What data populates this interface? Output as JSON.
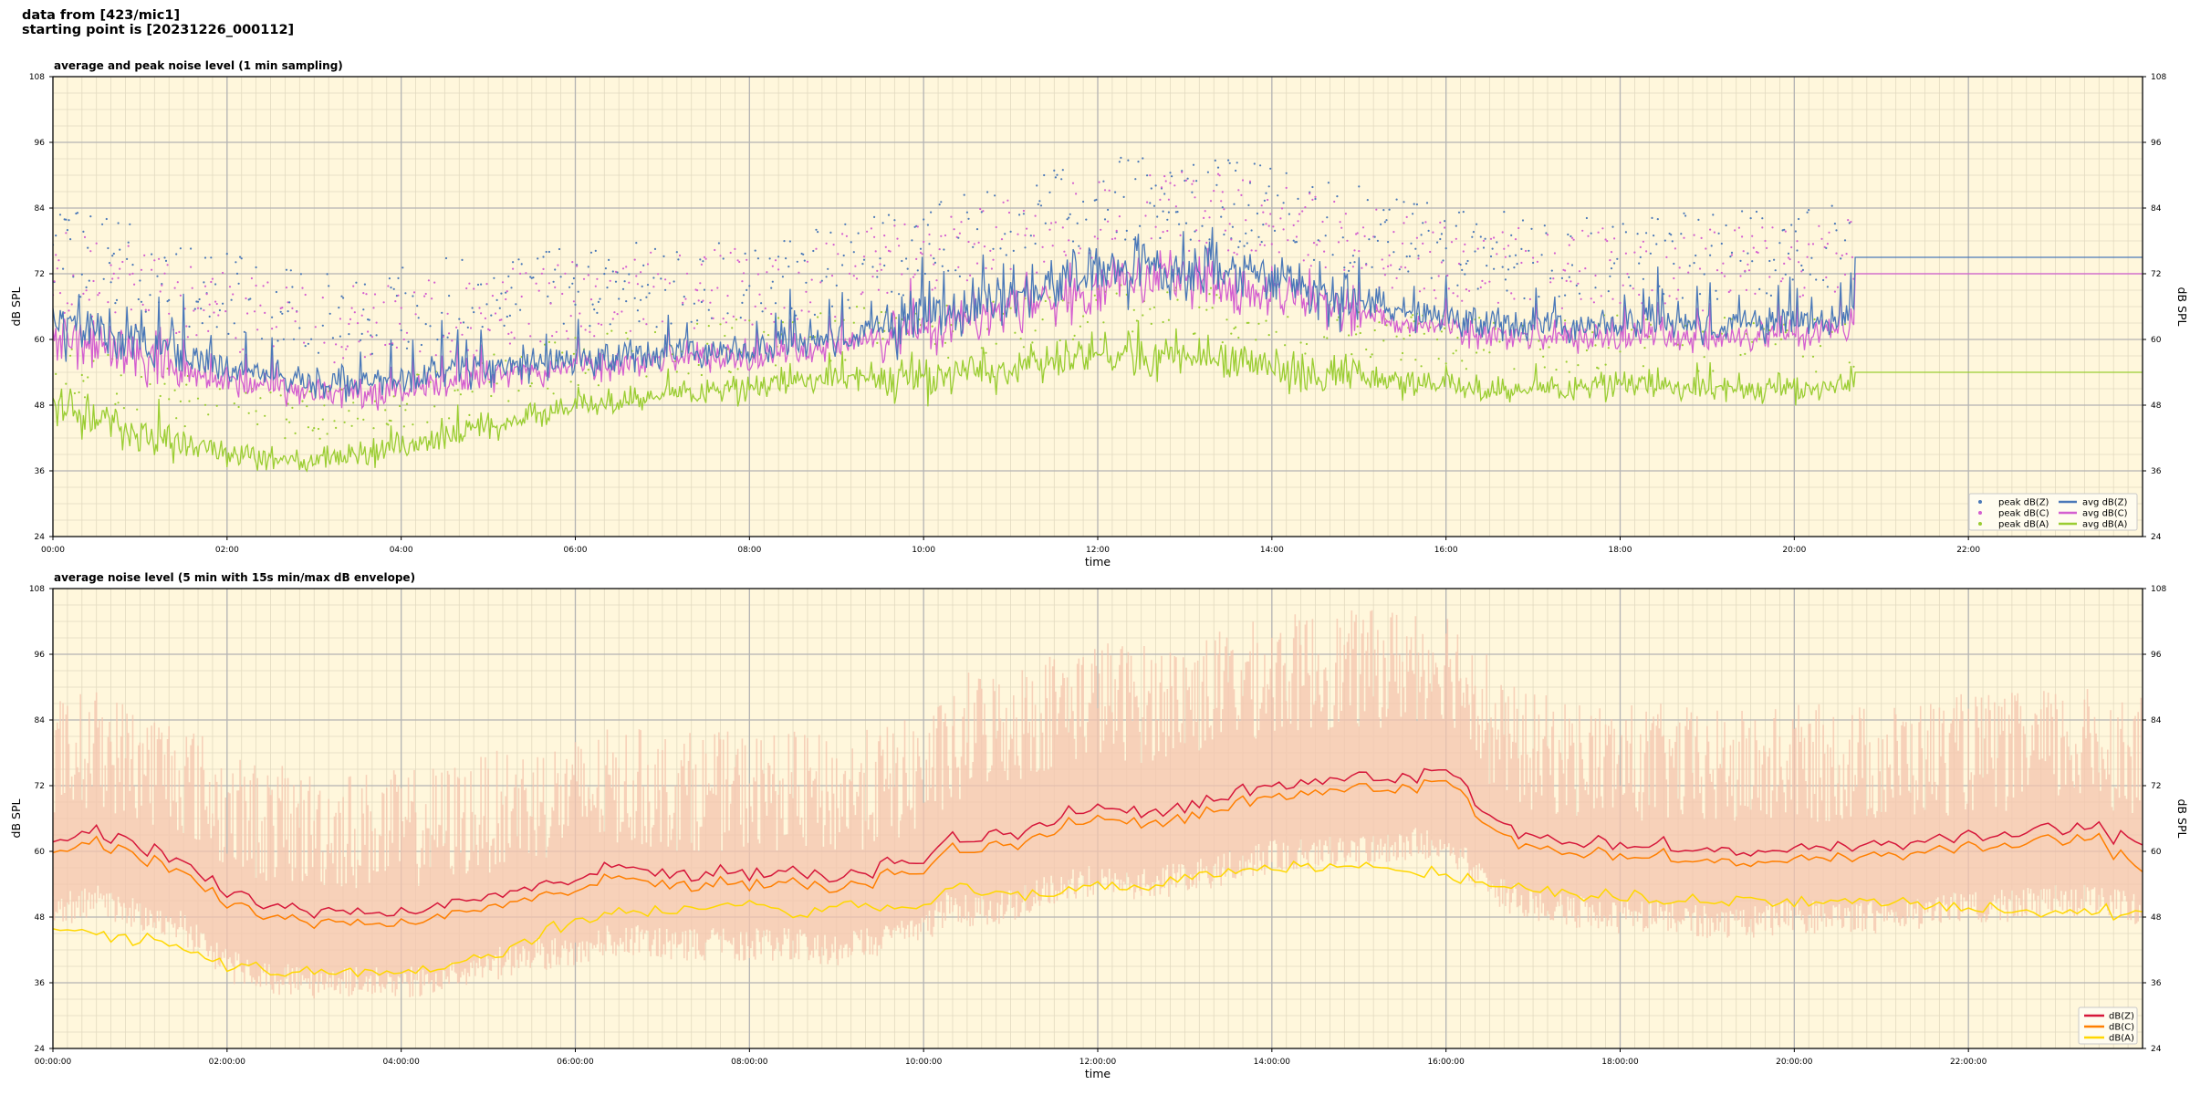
{
  "header": {
    "line1": "data from [423/mic1]",
    "line2": "starting point is [20231226_000112]"
  },
  "colors": {
    "plot_bg": "#fff7dc",
    "grid_major": "#b3b3b3",
    "grid_minor": "#e2dac0",
    "dbz": "#4a78b8",
    "dbc": "#d45fd0",
    "dba": "#9acd32",
    "z2": "#d6173a",
    "c2": "#ff7f00",
    "a2": "#ffd700",
    "envelope": "#f4c4ae"
  },
  "chart_data": [
    {
      "type": "line",
      "title": "average and peak noise level (1 min sampling)",
      "xlabel": "time",
      "ylabel": "dB SPL",
      "ylim": [
        24,
        108
      ],
      "yticks": [
        "108",
        "96",
        "84",
        "72",
        "60",
        "48",
        "36",
        "24"
      ],
      "xlim_hours": [
        0,
        24
      ],
      "xticks": [
        "00:00",
        "02:00",
        "04:00",
        "06:00",
        "08:00",
        "10:00",
        "12:00",
        "14:00",
        "16:00",
        "18:00",
        "20:00",
        "22:00"
      ],
      "grid": true,
      "legend_position": "lower-right",
      "legend": [
        "peak dB(Z)",
        "peak dB(C)",
        "peak dB(A)",
        "avg dB(Z)",
        "avg dB(C)",
        "avg dB(A)"
      ],
      "x_hours": [
        0,
        0.5,
        1,
        1.5,
        2,
        2.5,
        3,
        3.5,
        4,
        4.5,
        5,
        5.5,
        6,
        6.5,
        7,
        7.5,
        8,
        8.5,
        9,
        9.5,
        10,
        10.5,
        11,
        11.5,
        12,
        12.5,
        13,
        13.5,
        14,
        14.5,
        15,
        15.5,
        16,
        16.5,
        17,
        17.5,
        18,
        18.5,
        19,
        19.5,
        20,
        20.5,
        20.7,
        21,
        22,
        23,
        24
      ],
      "series": [
        {
          "name": "avg dB(Z)",
          "values": [
            63,
            62,
            60,
            57,
            55,
            53,
            52,
            52,
            53,
            54,
            55,
            56,
            56,
            57,
            57,
            57.5,
            58,
            59,
            60,
            62,
            64,
            66,
            68,
            70,
            72,
            73,
            73,
            72,
            71,
            69,
            67,
            65,
            64,
            63,
            62,
            62,
            63,
            63,
            62,
            63,
            63,
            64,
            65,
            75,
            75,
            75,
            75
          ]
        },
        {
          "name": "avg dB(C)",
          "values": [
            60,
            59,
            57,
            54,
            52,
            51,
            50,
            50,
            51,
            52,
            53,
            54,
            55,
            55.5,
            56,
            56.5,
            57,
            58,
            59,
            61,
            62,
            64,
            66,
            68,
            70,
            71,
            71,
            70,
            69,
            67,
            65,
            63,
            62,
            61,
            60,
            60,
            61,
            61,
            60,
            61,
            61,
            62,
            63,
            72,
            72,
            72,
            72
          ]
        },
        {
          "name": "avg dB(A)",
          "values": [
            47,
            45,
            43,
            41,
            39,
            38,
            38,
            39,
            40,
            42,
            44,
            46,
            48,
            49,
            50,
            50.5,
            51,
            52,
            53,
            53,
            53,
            54,
            55,
            56,
            57,
            57,
            57,
            56,
            55,
            54,
            53,
            52,
            52,
            51,
            51,
            51,
            52,
            51,
            51,
            51,
            51,
            51,
            52,
            54,
            54,
            54,
            54
          ]
        }
      ]
    },
    {
      "type": "line",
      "title": "average noise level (5 min with 15s min/max dB envelope)",
      "xlabel": "time",
      "ylabel": "dB SPL",
      "ylim": [
        24,
        108
      ],
      "yticks": [
        "108",
        "96",
        "84",
        "72",
        "60",
        "48",
        "36",
        "24"
      ],
      "xlim_hours": [
        0,
        24
      ],
      "xticks": [
        "00:00:00",
        "02:00:00",
        "04:00:00",
        "06:00:00",
        "08:00:00",
        "10:00:00",
        "12:00:00",
        "14:00:00",
        "16:00:00",
        "18:00:00",
        "20:00:00",
        "22:00:00"
      ],
      "grid": true,
      "legend_position": "lower-right",
      "legend": [
        "dB(Z)",
        "dB(C)",
        "dB(A)"
      ],
      "x_hours": [
        0,
        0.5,
        1,
        1.5,
        2,
        2.5,
        3,
        3.5,
        4,
        4.5,
        5,
        5.5,
        6,
        6.5,
        7,
        7.5,
        8,
        8.5,
        9,
        9.5,
        10,
        10.3,
        10.5,
        11,
        11.5,
        12,
        12.5,
        13,
        13.5,
        14,
        14.5,
        15,
        15.5,
        16,
        16.5,
        17,
        17.5,
        18,
        18.5,
        19,
        19.5,
        20,
        20.5,
        21,
        21.5,
        22,
        22.5,
        23,
        23.5,
        24
      ],
      "series": [
        {
          "name": "dB(Z)",
          "values": [
            62,
            64,
            61,
            59,
            52,
            50,
            49,
            49,
            49,
            50,
            52,
            54,
            55,
            57,
            56,
            56,
            56,
            56,
            55,
            57,
            59,
            63,
            62,
            63,
            66,
            68,
            67,
            68,
            70,
            72,
            73,
            73,
            74,
            75,
            66,
            63,
            62,
            61,
            61,
            60,
            60,
            61,
            61,
            61,
            62,
            63,
            63,
            64,
            64,
            62
          ]
        },
        {
          "name": "dB(C)",
          "values": [
            60,
            62,
            59,
            57,
            50,
            48,
            47,
            47,
            47,
            48,
            50,
            52,
            53,
            55,
            54,
            54,
            54,
            54,
            53,
            55,
            57,
            61,
            60,
            61,
            64,
            66,
            65,
            66,
            68,
            70,
            71,
            71,
            72,
            73,
            64,
            61,
            60,
            59,
            59,
            58,
            58,
            59,
            59,
            59,
            60,
            61,
            61,
            62,
            62,
            57
          ]
        },
        {
          "name": "dB(A)",
          "values": [
            46,
            45,
            44,
            43,
            39,
            38,
            38,
            38,
            38,
            39,
            41,
            44,
            47,
            49,
            49,
            50,
            50,
            49,
            50,
            50,
            50,
            54,
            53,
            52,
            52,
            54,
            54,
            55,
            56,
            57,
            57,
            57,
            57,
            56,
            54,
            53,
            52,
            52,
            51,
            51,
            51,
            51,
            51,
            51,
            50,
            50,
            49,
            49,
            49,
            49
          ]
        }
      ]
    }
  ]
}
